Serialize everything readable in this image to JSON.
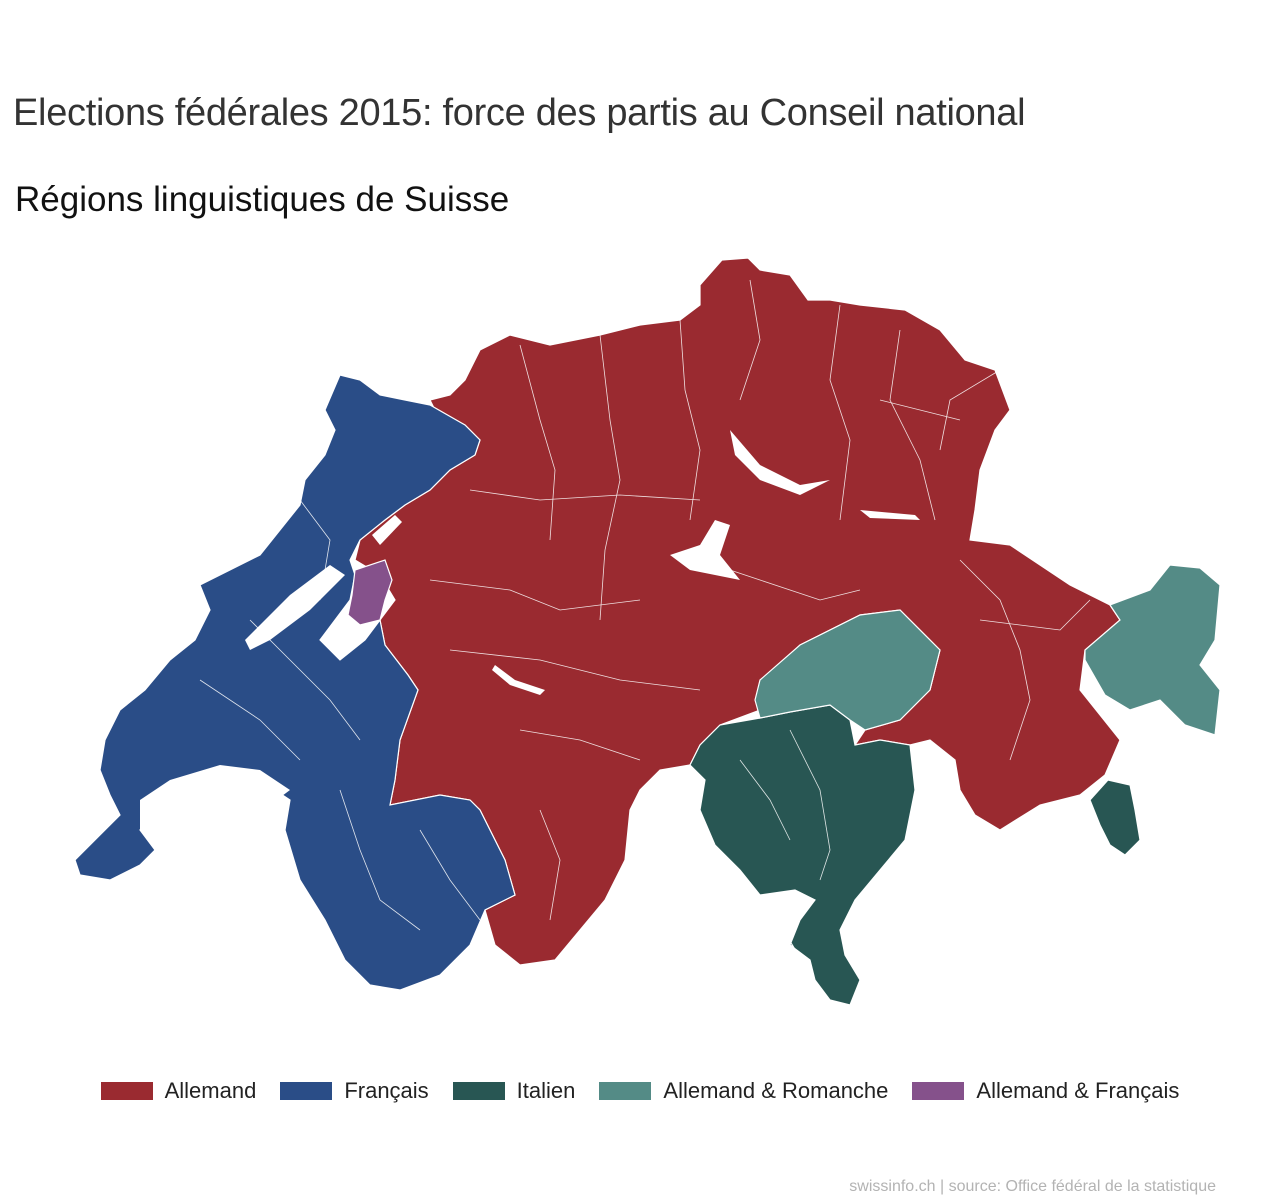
{
  "title": "Elections fédérales 2015: force des partis au Conseil national",
  "subtitle": "Régions linguistiques de Suisse",
  "legend": [
    {
      "key": "allemand",
      "label": "Allemand",
      "color": "#9a2a30"
    },
    {
      "key": "francais",
      "label": "Français",
      "color": "#2a4d87"
    },
    {
      "key": "italien",
      "label": "Italien",
      "color": "#285653"
    },
    {
      "key": "allemand_romanche",
      "label": "Allemand & Romanche",
      "color": "#548b86"
    },
    {
      "key": "allemand_francais",
      "label": "Allemand & Français",
      "color": "#85518b"
    }
  ],
  "source": "swissinfo.ch | source: Office fédéral de la statistique"
}
